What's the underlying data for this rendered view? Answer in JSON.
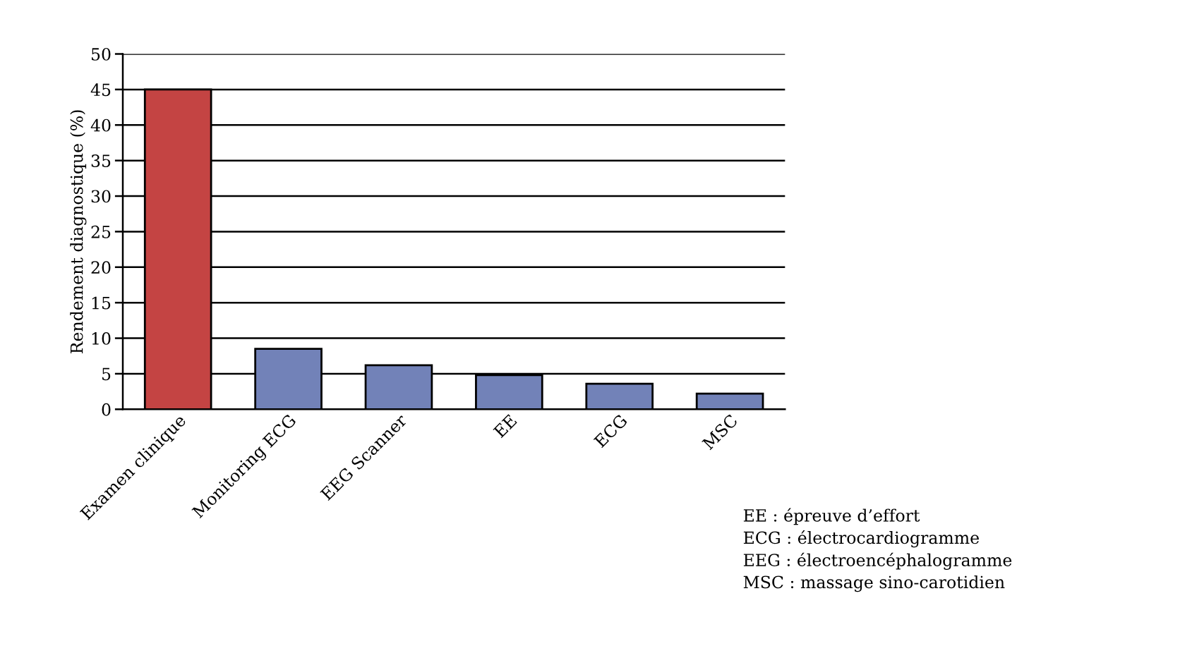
{
  "chart_data": {
    "type": "bar",
    "ylabel": "Rendement diagnostique (%)",
    "categories": [
      "Examen clinique",
      "Monitoring ECG",
      "EEG Scanner",
      "EE",
      "ECG",
      "MSC"
    ],
    "values": [
      45,
      8.5,
      6.2,
      4.8,
      3.6,
      2.2
    ],
    "colors": [
      "#c44443",
      "#7282b8",
      "#7282b8",
      "#7282b8",
      "#7282b8",
      "#7282b8"
    ],
    "ylim": [
      0,
      50
    ],
    "yticks": [
      0,
      5,
      10,
      15,
      20,
      25,
      30,
      35,
      40,
      45,
      50
    ],
    "grid": "y",
    "legend": false,
    "annotations": [
      "EE : épreuve d’effort",
      "ECG : électrocardiogramme",
      "EEG : électroencéphalogramme",
      "MSC : massage sino-carotidien"
    ]
  }
}
